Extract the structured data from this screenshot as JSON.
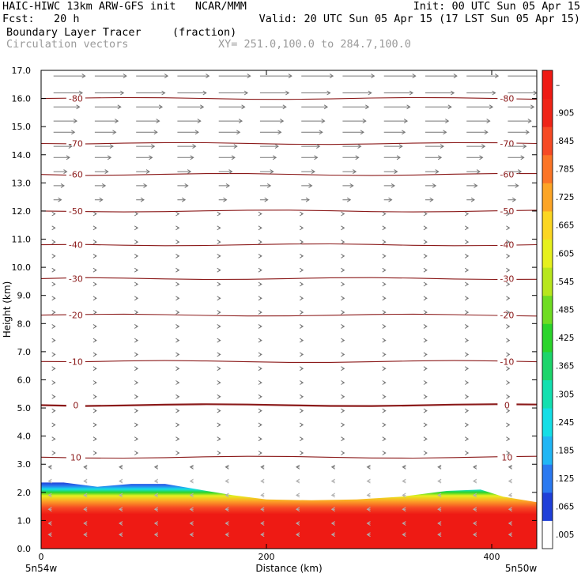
{
  "header": {
    "title": "HAIC-HIWC 13km ARW-GFS init   NCAR/MMM",
    "init": "Init: 00 UTC Sun 05 Apr 15",
    "fcst": "Fcst:   20 h",
    "valid": "Valid: 20 UTC Sun 05 Apr 15 (17 LST Sun 05 Apr 15)",
    "field1": "Boundary Layer Tracer",
    "field1_units": "(fraction)",
    "field2": "Circulation vectors",
    "xy": "XY= 251.0,100.0 to 284.7,100.0"
  },
  "chart_data": {
    "type": "heatmap",
    "xlabel": "Distance (km)",
    "ylabel": "Height (km)",
    "xlim": [
      0,
      440
    ],
    "ylim": [
      0,
      17
    ],
    "xticks": [
      0,
      200,
      400
    ],
    "yticks": [
      "0.0",
      "1.0",
      "2.0",
      "3.0",
      "4.0",
      "5.0",
      "6.0",
      "7.0",
      "8.0",
      "9.0",
      "10.0",
      "11.0",
      "12.0",
      "13.0",
      "14.0",
      "15.0",
      "16.0",
      "17.0"
    ],
    "x_endpoints": {
      "left": "5n54w",
      "right": "5n50w"
    },
    "colorbar": {
      "labels": [
        ".005",
        ".065",
        ".125",
        ".185",
        ".245",
        ".305",
        ".365",
        ".425",
        ".485",
        ".545",
        ".605",
        ".665",
        ".725",
        ".785",
        ".845",
        ".905",
        "–"
      ],
      "colors": [
        "#ffffff",
        "#1f3fd8",
        "#2a79f0",
        "#21b6f5",
        "#15dee6",
        "#14e0b0",
        "#1dd56b",
        "#2bd42b",
        "#6fdc22",
        "#b8e61d",
        "#e6f01e",
        "#fbd622",
        "#fca526",
        "#fb7526",
        "#f64a24",
        "#ef2417",
        "#ee1a14"
      ]
    },
    "temperature_contours": [
      {
        "value": 10,
        "label": "10",
        "height_km": 3.25
      },
      {
        "value": 0,
        "label": "0",
        "height_km": 5.1
      },
      {
        "value": -10,
        "label": "-10",
        "height_km": 6.65
      },
      {
        "value": -20,
        "label": "-20",
        "height_km": 8.3
      },
      {
        "value": -30,
        "label": "-30",
        "height_km": 9.6
      },
      {
        "value": -40,
        "label": "-40",
        "height_km": 10.8
      },
      {
        "value": -50,
        "label": "-50",
        "height_km": 12.0
      },
      {
        "value": -60,
        "label": "-60",
        "height_km": 13.3
      },
      {
        "value": -70,
        "label": "-70",
        "height_km": 14.4
      },
      {
        "value": -80,
        "label": "-80",
        "height_km": 16.0
      }
    ],
    "boundary_layer_top_km": {
      "x": [
        0,
        20,
        50,
        80,
        110,
        140,
        170,
        200,
        240,
        280,
        320,
        360,
        390,
        410,
        440
      ],
      "y": [
        2.35,
        2.35,
        2.2,
        2.3,
        2.3,
        2.1,
        1.9,
        1.75,
        1.72,
        1.75,
        1.85,
        2.05,
        2.1,
        1.85,
        1.65
      ]
    }
  }
}
